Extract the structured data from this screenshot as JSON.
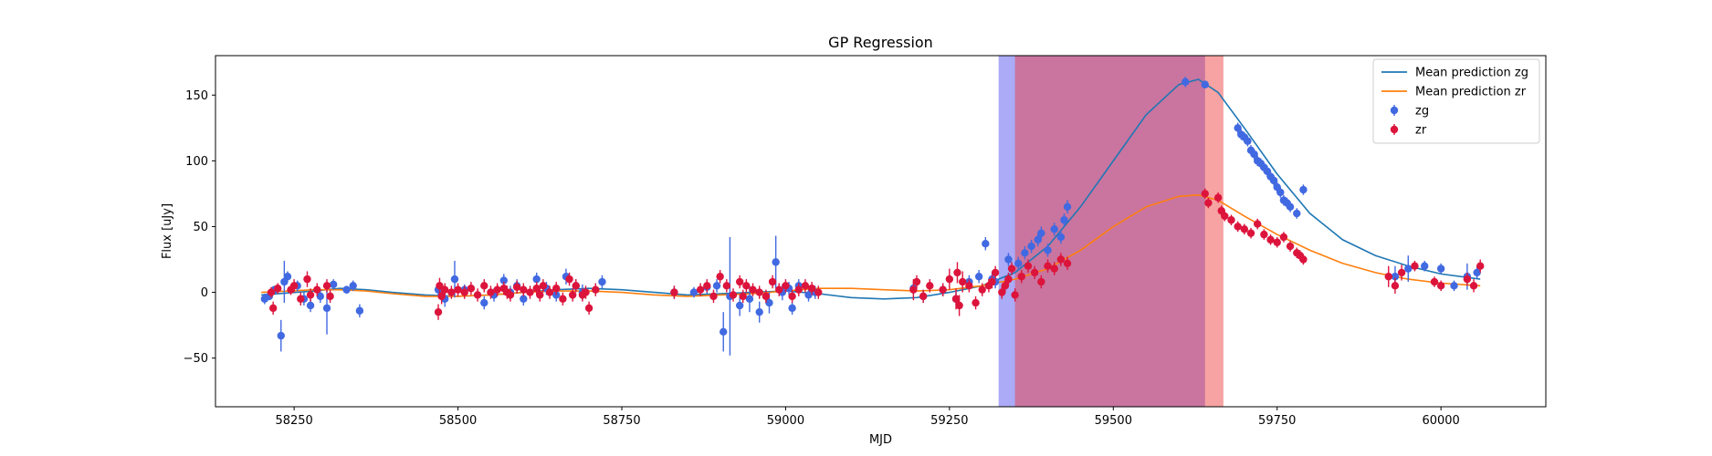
{
  "chart_data": {
    "type": "scatter",
    "title": "GP Regression",
    "xlabel": "MJD",
    "ylabel": "Flux [uJy]",
    "xlim": [
      58130,
      60160
    ],
    "ylim": [
      -87,
      180
    ],
    "xticks": [
      58250,
      58500,
      58750,
      59000,
      59250,
      59500,
      59750,
      60000
    ],
    "yticks": [
      -50,
      0,
      50,
      100,
      150
    ],
    "grid": false,
    "legend_position": "top-right",
    "shaded_regions": [
      {
        "series": "zg",
        "x_start": 59325,
        "x_end": 59640,
        "color": "#4444ee",
        "opacity": 0.45
      },
      {
        "series": "zr",
        "x_start": 59350,
        "x_end": 59668,
        "color": "#ee3333",
        "opacity": 0.45
      }
    ],
    "mean_lines": [
      {
        "name": "Mean prediction zg",
        "color": "#1f77b4",
        "x": [
          58200,
          58280,
          58320,
          58360,
          58400,
          58450,
          58500,
          58550,
          58600,
          58650,
          58700,
          58750,
          58800,
          58850,
          58900,
          58950,
          59000,
          59050,
          59100,
          59150,
          59200,
          59250,
          59300,
          59350,
          59400,
          59450,
          59500,
          59550,
          59600,
          59630,
          59660,
          59700,
          59750,
          59800,
          59850,
          59900,
          59950,
          60000,
          60060
        ],
        "y": [
          -2,
          1,
          3,
          2,
          0,
          -2,
          -3,
          -2,
          0,
          2,
          3,
          2,
          0,
          -2,
          -1,
          0,
          1,
          -1,
          -4,
          -5,
          -4,
          0,
          5,
          15,
          35,
          65,
          100,
          135,
          158,
          162,
          152,
          125,
          90,
          60,
          40,
          28,
          20,
          14,
          10
        ]
      },
      {
        "name": "Mean prediction zr",
        "color": "#ff7f0e",
        "x": [
          58200,
          58280,
          58320,
          58360,
          58400,
          58450,
          58500,
          58550,
          58600,
          58650,
          58700,
          58750,
          58800,
          58850,
          58900,
          58950,
          59000,
          59050,
          59100,
          59150,
          59200,
          59250,
          59300,
          59350,
          59400,
          59450,
          59500,
          59550,
          59600,
          59630,
          59660,
          59700,
          59750,
          59800,
          59850,
          59900,
          59950,
          60000,
          60060
        ],
        "y": [
          0,
          2,
          2,
          1,
          -1,
          -3,
          -3,
          -2,
          0,
          1,
          1,
          0,
          -2,
          -3,
          -2,
          -1,
          1,
          3,
          3,
          2,
          1,
          2,
          5,
          10,
          18,
          32,
          50,
          65,
          73,
          74,
          70,
          58,
          44,
          32,
          22,
          15,
          10,
          7,
          5
        ]
      }
    ],
    "series": [
      {
        "name": "zg",
        "color": "#4169e1",
        "x": [
          58205,
          58212,
          58220,
          58230,
          58235,
          58240,
          58255,
          58265,
          58275,
          58290,
          58300,
          58310,
          58330,
          58340,
          58350,
          58470,
          58480,
          58495,
          58510,
          58540,
          58555,
          58570,
          58580,
          58590,
          58600,
          58620,
          58635,
          58650,
          58665,
          58680,
          58690,
          58720,
          58830,
          58860,
          58880,
          58895,
          58905,
          58915,
          58930,
          58945,
          58960,
          58975,
          58985,
          58995,
          59005,
          59010,
          59020,
          59035,
          59045,
          59195,
          59210,
          59240,
          59260,
          59280,
          59295,
          59305,
          59315,
          59320,
          59340,
          59355,
          59365,
          59375,
          59385,
          59390,
          59400,
          59410,
          59420,
          59425,
          59430,
          59610,
          59640,
          59690,
          59695,
          59700,
          59705,
          59710,
          59715,
          59720,
          59725,
          59730,
          59735,
          59740,
          59745,
          59750,
          59755,
          59760,
          59765,
          59770,
          59780,
          59790,
          59930,
          59950,
          59975,
          60000,
          60020,
          60040,
          60055
        ],
        "y": [
          -5,
          -3,
          2,
          -33,
          8,
          12,
          5,
          -5,
          -10,
          -3,
          -12,
          6,
          2,
          5,
          -14,
          2,
          -5,
          10,
          2,
          -8,
          -2,
          9,
          0,
          5,
          -5,
          10,
          3,
          -2,
          12,
          5,
          0,
          8,
          0,
          0,
          4,
          5,
          -30,
          -3,
          -10,
          -5,
          -15,
          -8,
          23,
          0,
          3,
          -12,
          5,
          -2,
          0,
          3,
          -3,
          2,
          -5,
          8,
          12,
          37,
          10,
          8,
          25,
          22,
          30,
          35,
          40,
          45,
          32,
          48,
          42,
          55,
          65,
          160,
          158,
          125,
          120,
          118,
          115,
          108,
          105,
          100,
          98,
          95,
          92,
          88,
          85,
          80,
          76,
          70,
          68,
          65,
          60,
          78,
          12,
          18,
          20,
          18,
          5,
          12,
          15
        ],
        "yerr": [
          4,
          3,
          3,
          12,
          16,
          4,
          4,
          5,
          5,
          5,
          20,
          4,
          3,
          4,
          5,
          5,
          6,
          14,
          4,
          5,
          5,
          5,
          5,
          5,
          5,
          5,
          5,
          5,
          6,
          5,
          6,
          5,
          5,
          4,
          5,
          5,
          15,
          45,
          8,
          10,
          8,
          8,
          20,
          6,
          5,
          5,
          5,
          5,
          5,
          5,
          5,
          5,
          5,
          5,
          5,
          5,
          5,
          5,
          5,
          5,
          5,
          5,
          5,
          5,
          5,
          5,
          5,
          5,
          5,
          4,
          3,
          4,
          4,
          4,
          4,
          4,
          4,
          4,
          4,
          4,
          4,
          4,
          4,
          4,
          4,
          4,
          4,
          4,
          4,
          4,
          8,
          10,
          4,
          4,
          4,
          10,
          5
        ]
      },
      {
        "name": "zr",
        "color": "#dc143c",
        "x": [
          58215,
          58218,
          58225,
          58245,
          58250,
          58260,
          58270,
          58275,
          58285,
          58300,
          58305,
          58470,
          58472,
          58475,
          58480,
          58490,
          58500,
          58510,
          58520,
          58530,
          58540,
          58550,
          58560,
          58570,
          58575,
          58580,
          58590,
          58600,
          58610,
          58620,
          58625,
          58630,
          58640,
          58650,
          58660,
          58670,
          58675,
          58680,
          58690,
          58695,
          58700,
          58710,
          58830,
          58870,
          58880,
          58890,
          58900,
          58910,
          58920,
          58930,
          58935,
          58940,
          58950,
          58960,
          58970,
          58980,
          58990,
          59000,
          59010,
          59020,
          59030,
          59040,
          59050,
          59195,
          59200,
          59210,
          59220,
          59240,
          59250,
          59260,
          59262,
          59265,
          59270,
          59280,
          59290,
          59300,
          59310,
          59315,
          59320,
          59330,
          59335,
          59340,
          59345,
          59350,
          59360,
          59370,
          59380,
          59390,
          59400,
          59410,
          59420,
          59430,
          59640,
          59645,
          59660,
          59665,
          59670,
          59680,
          59690,
          59700,
          59710,
          59720,
          59730,
          59740,
          59750,
          59760,
          59770,
          59780,
          59785,
          59790,
          59920,
          59930,
          59940,
          59960,
          59990,
          60000,
          60040,
          60050,
          60060
        ],
        "y": [
          0,
          -12,
          3,
          2,
          5,
          -5,
          10,
          -2,
          2,
          5,
          -3,
          -15,
          5,
          -3,
          2,
          0,
          2,
          0,
          3,
          -2,
          5,
          0,
          2,
          3,
          0,
          -2,
          4,
          2,
          0,
          3,
          -2,
          5,
          0,
          3,
          -5,
          10,
          -2,
          5,
          -2,
          0,
          -12,
          2,
          0,
          2,
          5,
          -3,
          12,
          5,
          -2,
          8,
          -3,
          5,
          2,
          0,
          -3,
          8,
          2,
          5,
          -3,
          2,
          5,
          3,
          0,
          2,
          8,
          -3,
          5,
          2,
          10,
          -5,
          15,
          -10,
          8,
          5,
          -8,
          2,
          5,
          8,
          15,
          0,
          5,
          10,
          18,
          -2,
          12,
          20,
          15,
          8,
          20,
          18,
          25,
          22,
          75,
          68,
          72,
          62,
          58,
          55,
          50,
          48,
          45,
          52,
          44,
          40,
          38,
          42,
          35,
          30,
          28,
          25,
          12,
          5,
          15,
          20,
          8,
          5,
          10,
          5,
          20
        ],
        "yerr": [
          4,
          5,
          4,
          4,
          5,
          5,
          6,
          5,
          5,
          5,
          5,
          6,
          6,
          6,
          5,
          5,
          5,
          5,
          5,
          5,
          5,
          5,
          5,
          5,
          5,
          5,
          5,
          5,
          5,
          5,
          5,
          5,
          5,
          5,
          5,
          5,
          5,
          5,
          5,
          5,
          5,
          5,
          5,
          5,
          5,
          5,
          5,
          5,
          5,
          5,
          5,
          5,
          5,
          5,
          5,
          5,
          5,
          5,
          5,
          5,
          5,
          5,
          5,
          8,
          5,
          5,
          5,
          5,
          8,
          8,
          8,
          8,
          8,
          5,
          5,
          5,
          5,
          5,
          5,
          5,
          5,
          5,
          5,
          5,
          5,
          5,
          5,
          5,
          5,
          5,
          5,
          5,
          4,
          4,
          4,
          4,
          4,
          4,
          4,
          4,
          4,
          4,
          4,
          4,
          4,
          4,
          4,
          4,
          4,
          4,
          8,
          6,
          6,
          4,
          4,
          4,
          5,
          5,
          5
        ]
      }
    ],
    "legend": [
      {
        "label": "Mean prediction zg",
        "kind": "line",
        "color": "#1f77b4"
      },
      {
        "label": "Mean prediction zr",
        "kind": "line",
        "color": "#ff7f0e"
      },
      {
        "label": "zg",
        "kind": "errorbar",
        "color": "#4169e1"
      },
      {
        "label": "zr",
        "kind": "errorbar",
        "color": "#dc143c"
      }
    ]
  }
}
